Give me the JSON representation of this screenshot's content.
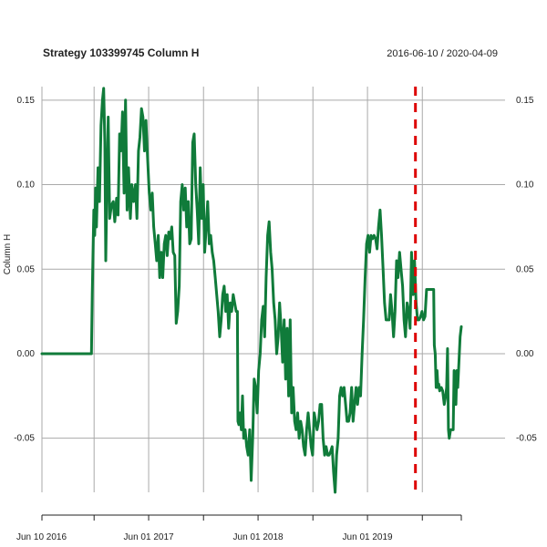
{
  "chart_data": {
    "type": "line",
    "title": "Strategy 103399745 Column H",
    "date_range": "2016-06-10 / 2020-04-09",
    "ylabel": "Column H",
    "xlabel": "",
    "ylim": [
      -0.082,
      0.158
    ],
    "xlim": [
      "2016-06-10",
      "2020-04-09"
    ],
    "y_ticks": [
      -0.05,
      0.0,
      0.05,
      0.1,
      0.15
    ],
    "y_tick_labels": [
      "-0.05",
      "0.00",
      "0.05",
      "0.10",
      "0.15"
    ],
    "x_ticks": [
      "2016-06-10",
      "2017-06-01",
      "2018-06-01",
      "2019-06-01"
    ],
    "x_tick_labels": [
      "Jun 10 2016",
      "Jun 01 2017",
      "Jun 01 2018",
      "Jun 01 2019"
    ],
    "x_minor_ticks": [
      "2016-12-01",
      "2017-12-01",
      "2018-12-01",
      "2019-12-01"
    ],
    "grid": true,
    "event_line_date": "2019-11-08",
    "colors": {
      "series": "#107b3a",
      "event_line": "#dd0000",
      "grid": "#a9a9a9"
    },
    "series": [
      {
        "values": [
          [
            "2016-06-10",
            0.0
          ],
          [
            "2016-11-15",
            0.0
          ],
          [
            "2016-11-22",
            0.0
          ],
          [
            "2016-11-25",
            0.035
          ],
          [
            "2016-11-30",
            0.085
          ],
          [
            "2016-12-03",
            0.07
          ],
          [
            "2016-12-06",
            0.098
          ],
          [
            "2016-12-09",
            0.075
          ],
          [
            "2016-12-14",
            0.11
          ],
          [
            "2016-12-19",
            0.09
          ],
          [
            "2016-12-24",
            0.135
          ],
          [
            "2016-12-29",
            0.15
          ],
          [
            "2017-01-02",
            0.157
          ],
          [
            "2017-01-06",
            0.125
          ],
          [
            "2017-01-09",
            0.055
          ],
          [
            "2017-01-12",
            0.09
          ],
          [
            "2017-01-17",
            0.14
          ],
          [
            "2017-01-22",
            0.08
          ],
          [
            "2017-01-28",
            0.088
          ],
          [
            "2017-02-03",
            0.09
          ],
          [
            "2017-02-08",
            0.078
          ],
          [
            "2017-02-14",
            0.092
          ],
          [
            "2017-02-19",
            0.082
          ],
          [
            "2017-02-24",
            0.13
          ],
          [
            "2017-03-01",
            0.12
          ],
          [
            "2017-03-06",
            0.143
          ],
          [
            "2017-03-11",
            0.095
          ],
          [
            "2017-03-16",
            0.15
          ],
          [
            "2017-03-21",
            0.085
          ],
          [
            "2017-03-26",
            0.11
          ],
          [
            "2017-04-01",
            0.08
          ],
          [
            "2017-04-06",
            0.1
          ],
          [
            "2017-04-12",
            0.09
          ],
          [
            "2017-04-18",
            0.1
          ],
          [
            "2017-04-23",
            0.08
          ],
          [
            "2017-04-28",
            0.12
          ],
          [
            "2017-05-03",
            0.128
          ],
          [
            "2017-05-08",
            0.145
          ],
          [
            "2017-05-13",
            0.14
          ],
          [
            "2017-05-18",
            0.12
          ],
          [
            "2017-05-23",
            0.138
          ],
          [
            "2017-05-28",
            0.118
          ],
          [
            "2017-06-03",
            0.095
          ],
          [
            "2017-06-08",
            0.085
          ],
          [
            "2017-06-13",
            0.095
          ],
          [
            "2017-06-18",
            0.075
          ],
          [
            "2017-06-23",
            0.065
          ],
          [
            "2017-06-28",
            0.055
          ],
          [
            "2017-07-03",
            0.07
          ],
          [
            "2017-07-08",
            0.045
          ],
          [
            "2017-07-13",
            0.06
          ],
          [
            "2017-07-18",
            0.045
          ],
          [
            "2017-07-23",
            0.065
          ],
          [
            "2017-07-28",
            0.07
          ],
          [
            "2017-08-02",
            0.058
          ],
          [
            "2017-08-07",
            0.072
          ],
          [
            "2017-08-12",
            0.068
          ],
          [
            "2017-08-17",
            0.075
          ],
          [
            "2017-08-22",
            0.06
          ],
          [
            "2017-08-27",
            0.058
          ],
          [
            "2017-09-01",
            0.018
          ],
          [
            "2017-09-06",
            0.025
          ],
          [
            "2017-09-11",
            0.04
          ],
          [
            "2017-09-16",
            0.09
          ],
          [
            "2017-09-21",
            0.1
          ],
          [
            "2017-09-26",
            0.085
          ],
          [
            "2017-10-01",
            0.098
          ],
          [
            "2017-10-06",
            0.075
          ],
          [
            "2017-10-11",
            0.09
          ],
          [
            "2017-10-16",
            0.065
          ],
          [
            "2017-10-21",
            0.068
          ],
          [
            "2017-10-26",
            0.125
          ],
          [
            "2017-10-31",
            0.13
          ],
          [
            "2017-11-05",
            0.1
          ],
          [
            "2017-11-10",
            0.085
          ],
          [
            "2017-11-15",
            0.065
          ],
          [
            "2017-11-20",
            0.11
          ],
          [
            "2017-11-25",
            0.08
          ],
          [
            "2017-11-30",
            0.1
          ],
          [
            "2017-12-05",
            0.06
          ],
          [
            "2017-12-10",
            0.075
          ],
          [
            "2017-12-15",
            0.09
          ],
          [
            "2017-12-20",
            0.065
          ],
          [
            "2017-12-25",
            0.07
          ],
          [
            "2017-12-30",
            0.06
          ],
          [
            "2018-01-04",
            0.055
          ],
          [
            "2018-01-09",
            0.045
          ],
          [
            "2018-01-14",
            0.035
          ],
          [
            "2018-01-19",
            0.025
          ],
          [
            "2018-01-24",
            0.01
          ],
          [
            "2018-01-29",
            0.02
          ],
          [
            "2018-02-03",
            0.035
          ],
          [
            "2018-02-08",
            0.04
          ],
          [
            "2018-02-13",
            0.025
          ],
          [
            "2018-02-18",
            0.035
          ],
          [
            "2018-02-23",
            0.015
          ],
          [
            "2018-02-28",
            0.03
          ],
          [
            "2018-03-05",
            0.025
          ],
          [
            "2018-03-10",
            0.035
          ],
          [
            "2018-03-15",
            0.03
          ],
          [
            "2018-03-20",
            0.025
          ],
          [
            "2018-03-24",
            0.025
          ],
          [
            "2018-03-26",
            -0.04
          ],
          [
            "2018-03-29",
            -0.042
          ],
          [
            "2018-04-02",
            -0.035
          ],
          [
            "2018-04-06",
            -0.045
          ],
          [
            "2018-04-10",
            -0.025
          ],
          [
            "2018-04-14",
            -0.05
          ],
          [
            "2018-04-19",
            -0.045
          ],
          [
            "2018-04-24",
            -0.055
          ],
          [
            "2018-04-29",
            -0.06
          ],
          [
            "2018-05-04",
            -0.045
          ],
          [
            "2018-05-09",
            -0.075
          ],
          [
            "2018-05-14",
            -0.05
          ],
          [
            "2018-05-19",
            -0.015
          ],
          [
            "2018-05-24",
            -0.02
          ],
          [
            "2018-05-29",
            -0.035
          ],
          [
            "2018-06-03",
            -0.01
          ],
          [
            "2018-06-08",
            0.0
          ],
          [
            "2018-06-13",
            0.02
          ],
          [
            "2018-06-18",
            0.028
          ],
          [
            "2018-06-23",
            0.01
          ],
          [
            "2018-06-28",
            0.045
          ],
          [
            "2018-07-03",
            0.07
          ],
          [
            "2018-07-08",
            0.078
          ],
          [
            "2018-07-13",
            0.06
          ],
          [
            "2018-07-18",
            0.05
          ],
          [
            "2018-07-23",
            0.03
          ],
          [
            "2018-07-28",
            0.02
          ],
          [
            "2018-08-02",
            0.0
          ],
          [
            "2018-08-07",
            0.01
          ],
          [
            "2018-08-12",
            0.03
          ],
          [
            "2018-08-17",
            0.015
          ],
          [
            "2018-08-22",
            -0.005
          ],
          [
            "2018-08-27",
            0.02
          ],
          [
            "2018-09-01",
            -0.015
          ],
          [
            "2018-09-06",
            0.015
          ],
          [
            "2018-09-11",
            -0.025
          ],
          [
            "2018-09-16",
            0.02
          ],
          [
            "2018-09-21",
            -0.035
          ],
          [
            "2018-09-26",
            -0.02
          ],
          [
            "2018-10-01",
            -0.04
          ],
          [
            "2018-10-06",
            -0.045
          ],
          [
            "2018-10-11",
            -0.035
          ],
          [
            "2018-10-16",
            -0.05
          ],
          [
            "2018-10-21",
            -0.04
          ],
          [
            "2018-10-26",
            -0.045
          ],
          [
            "2018-10-31",
            -0.055
          ],
          [
            "2018-11-05",
            -0.06
          ],
          [
            "2018-11-10",
            -0.045
          ],
          [
            "2018-11-15",
            -0.035
          ],
          [
            "2018-11-20",
            -0.045
          ],
          [
            "2018-11-25",
            -0.055
          ],
          [
            "2018-11-30",
            -0.06
          ],
          [
            "2018-12-05",
            -0.035
          ],
          [
            "2018-12-10",
            -0.04
          ],
          [
            "2018-12-15",
            -0.045
          ],
          [
            "2018-12-20",
            -0.04
          ],
          [
            "2018-12-25",
            -0.03
          ],
          [
            "2018-12-30",
            -0.03
          ],
          [
            "2019-01-04",
            -0.05
          ],
          [
            "2019-01-09",
            -0.06
          ],
          [
            "2019-01-14",
            -0.055
          ],
          [
            "2019-01-19",
            -0.06
          ],
          [
            "2019-01-24",
            -0.06
          ],
          [
            "2019-01-29",
            -0.058
          ],
          [
            "2019-02-03",
            -0.055
          ],
          [
            "2019-02-08",
            -0.07
          ],
          [
            "2019-02-13",
            -0.082
          ],
          [
            "2019-02-18",
            -0.06
          ],
          [
            "2019-02-23",
            -0.05
          ],
          [
            "2019-02-28",
            -0.025
          ],
          [
            "2019-03-05",
            -0.02
          ],
          [
            "2019-03-10",
            -0.025
          ],
          [
            "2019-03-15",
            -0.02
          ],
          [
            "2019-03-20",
            -0.03
          ],
          [
            "2019-03-25",
            -0.04
          ],
          [
            "2019-03-30",
            -0.04
          ],
          [
            "2019-04-04",
            -0.035
          ],
          [
            "2019-04-09",
            -0.02
          ],
          [
            "2019-04-14",
            -0.04
          ],
          [
            "2019-04-19",
            -0.03
          ],
          [
            "2019-04-24",
            -0.02
          ],
          [
            "2019-04-29",
            -0.03
          ],
          [
            "2019-05-04",
            -0.02
          ],
          [
            "2019-05-09",
            -0.025
          ],
          [
            "2019-05-14",
            0.0
          ],
          [
            "2019-05-19",
            0.02
          ],
          [
            "2019-05-24",
            0.045
          ],
          [
            "2019-05-29",
            0.065
          ],
          [
            "2019-06-03",
            0.07
          ],
          [
            "2019-06-08",
            0.06
          ],
          [
            "2019-06-13",
            0.07
          ],
          [
            "2019-06-18",
            0.068
          ],
          [
            "2019-06-23",
            0.07
          ],
          [
            "2019-06-28",
            0.068
          ],
          [
            "2019-07-03",
            0.062
          ],
          [
            "2019-07-08",
            0.075
          ],
          [
            "2019-07-13",
            0.085
          ],
          [
            "2019-07-18",
            0.07
          ],
          [
            "2019-07-23",
            0.05
          ],
          [
            "2019-07-28",
            0.03
          ],
          [
            "2019-08-02",
            0.02
          ],
          [
            "2019-08-07",
            0.02
          ],
          [
            "2019-08-12",
            0.02
          ],
          [
            "2019-08-17",
            0.035
          ],
          [
            "2019-08-22",
            0.025
          ],
          [
            "2019-08-27",
            0.01
          ],
          [
            "2019-09-01",
            0.025
          ],
          [
            "2019-09-06",
            0.055
          ],
          [
            "2019-09-11",
            0.045
          ],
          [
            "2019-09-16",
            0.06
          ],
          [
            "2019-09-21",
            0.05
          ],
          [
            "2019-09-26",
            0.04
          ],
          [
            "2019-10-01",
            0.02
          ],
          [
            "2019-10-06",
            0.01
          ],
          [
            "2019-10-11",
            0.03
          ],
          [
            "2019-10-16",
            0.025
          ],
          [
            "2019-10-21",
            0.015
          ],
          [
            "2019-10-26",
            0.06
          ],
          [
            "2019-10-31",
            0.035
          ],
          [
            "2019-11-05",
            0.055
          ],
          [
            "2019-11-10",
            0.03
          ],
          [
            "2019-11-15",
            0.02
          ],
          [
            "2019-11-20",
            0.02
          ],
          [
            "2019-11-25",
            0.022
          ],
          [
            "2019-11-30",
            0.025
          ],
          [
            "2019-12-05",
            0.02
          ],
          [
            "2019-12-10",
            0.022
          ],
          [
            "2019-12-15",
            0.038
          ],
          [
            "2019-12-20",
            0.038
          ],
          [
            "2019-12-25",
            0.038
          ],
          [
            "2019-12-30",
            0.038
          ],
          [
            "2020-01-04",
            0.038
          ],
          [
            "2020-01-08",
            0.038
          ],
          [
            "2020-01-10",
            0.005
          ],
          [
            "2020-01-13",
            0.0
          ],
          [
            "2020-01-16",
            -0.02
          ],
          [
            "2020-01-19",
            -0.01
          ],
          [
            "2020-01-22",
            -0.02
          ],
          [
            "2020-01-25",
            -0.018
          ],
          [
            "2020-01-28",
            -0.022
          ],
          [
            "2020-02-02",
            -0.02
          ],
          [
            "2020-02-07",
            -0.022
          ],
          [
            "2020-02-12",
            -0.03
          ],
          [
            "2020-02-17",
            -0.025
          ],
          [
            "2020-02-20",
            -0.02
          ],
          [
            "2020-02-23",
            0.003
          ],
          [
            "2020-02-26",
            -0.045
          ],
          [
            "2020-02-29",
            -0.05
          ],
          [
            "2020-03-04",
            -0.045
          ],
          [
            "2020-03-09",
            -0.045
          ],
          [
            "2020-03-13",
            -0.045
          ],
          [
            "2020-03-16",
            -0.01
          ],
          [
            "2020-03-19",
            -0.02
          ],
          [
            "2020-03-22",
            -0.03
          ],
          [
            "2020-03-25",
            -0.01
          ],
          [
            "2020-03-28",
            -0.02
          ],
          [
            "2020-04-01",
            -0.005
          ],
          [
            "2020-04-05",
            0.01
          ],
          [
            "2020-04-09",
            0.016
          ]
        ]
      }
    ]
  }
}
